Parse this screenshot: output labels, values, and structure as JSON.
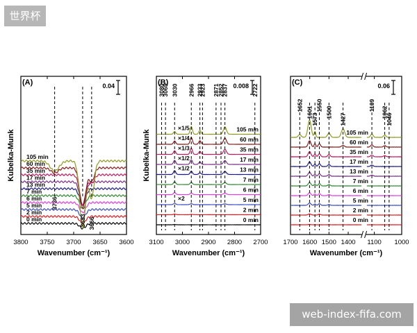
{
  "watermarks": {
    "top_left": "世界杯",
    "bottom_right": "web-index-fifa.com"
  },
  "chart_data": [
    {
      "panel": "(A)",
      "type": "line",
      "xlabel": "Wavenumber (cm⁻¹)",
      "ylabel": "Kubelka-Munk",
      "xlim": [
        3800,
        3600
      ],
      "xticks": [
        3800,
        3750,
        3700,
        3650,
        3600
      ],
      "scale_bar": "0.04",
      "markers": [
        {
          "x": 3736,
          "label": "3736"
        },
        {
          "x": 3683,
          "label": "3683"
        },
        {
          "x": 3666,
          "label": "3666"
        }
      ],
      "series": [
        {
          "name": "0 min",
          "color": "#000000",
          "features": [
            {
              "x": 3683,
              "w": 8,
              "a": -0.003
            }
          ]
        },
        {
          "name": "2 min",
          "color": "#e41a1c",
          "features": [
            {
              "x": 3683,
              "w": 8,
              "a": -0.004
            }
          ]
        },
        {
          "name": "5 min",
          "color": "#3b4cc0",
          "features": [
            {
              "x": 3683,
              "w": 8,
              "a": -0.005
            }
          ]
        },
        {
          "name": "6 min",
          "color": "#e43ce4",
          "features": [
            {
              "x": 3683,
              "w": 8,
              "a": -0.006
            }
          ]
        },
        {
          "name": "7 min",
          "color": "#2e8b2e",
          "features": [
            {
              "x": 3683,
              "w": 8,
              "a": -0.008
            }
          ]
        },
        {
          "name": "13 min",
          "color": "#1a1a8c",
          "features": [
            {
              "x": 3683,
              "w": 8,
              "a": -0.01
            }
          ]
        },
        {
          "name": "17 min",
          "color": "#7b2d8b",
          "features": [
            {
              "x": 3683,
              "w": 8,
              "a": -0.014
            }
          ]
        },
        {
          "name": "35 min",
          "color": "#c2185b",
          "features": [
            {
              "x": 3683,
              "w": 8,
              "a": -0.018
            },
            {
              "x": 3666,
              "w": 7,
              "a": -0.005
            }
          ]
        },
        {
          "name": "60 min",
          "color": "#8b1a1a",
          "features": [
            {
              "x": 3736,
              "w": 10,
              "a": -0.003
            },
            {
              "x": 3683,
              "w": 8,
              "a": -0.024
            },
            {
              "x": 3666,
              "w": 7,
              "a": -0.008
            }
          ]
        },
        {
          "name": "105 min",
          "color": "#8e9a1f",
          "features": [
            {
              "x": 3736,
              "w": 12,
              "a": -0.006
            },
            {
              "x": 3683,
              "w": 8,
              "a": -0.04
            },
            {
              "x": 3666,
              "w": 7,
              "a": -0.022
            }
          ]
        }
      ]
    },
    {
      "panel": "(B)",
      "type": "line",
      "xlabel": "Wavenumber (cm⁻¹)",
      "ylabel": "Kubelka-Munk",
      "xlim": [
        3100,
        2700
      ],
      "xticks": [
        3100,
        3000,
        2900,
        2800,
        2700
      ],
      "scale_bar": "0.008",
      "markers": [
        {
          "x": 3080,
          "label": "3080"
        },
        {
          "x": 3065,
          "label": "3065"
        },
        {
          "x": 3030,
          "label": "3030"
        },
        {
          "x": 2966,
          "label": "2966"
        },
        {
          "x": 2933,
          "label": "2933"
        },
        {
          "x": 2923,
          "label": "2923"
        },
        {
          "x": 2871,
          "label": "2871"
        },
        {
          "x": 2852,
          "label": "2852"
        },
        {
          "x": 2837,
          "label": "2837"
        },
        {
          "x": 2722,
          "label": "2722"
        }
      ],
      "multipliers": [
        {
          "label": "×1/5",
          "series": "105 min"
        },
        {
          "label": "×1/4",
          "series": "60 min"
        },
        {
          "label": "×1/3",
          "series": "35 min"
        },
        {
          "label": "×1/2",
          "series": "17 min"
        },
        {
          "label": "×1/2",
          "series": "13 min"
        },
        {
          "label": "×2",
          "series": "5 min"
        }
      ],
      "series": [
        {
          "name": "0 min",
          "color": "#000000",
          "features": [
            {
              "x": 3030,
              "w": 6,
              "a": 0.0002
            }
          ]
        },
        {
          "name": "2 min",
          "color": "#e41a1c",
          "features": [
            {
              "x": 3030,
              "w": 6,
              "a": 0.0005
            },
            {
              "x": 2966,
              "w": 6,
              "a": 0.0003
            }
          ]
        },
        {
          "name": "5 min",
          "color": "#3b4cc0",
          "features": [
            {
              "x": 3030,
              "w": 6,
              "a": 0.001
            },
            {
              "x": 2966,
              "w": 6,
              "a": 0.0008
            },
            {
              "x": 2837,
              "w": 8,
              "a": 0.0006
            }
          ]
        },
        {
          "name": "6 min",
          "color": "#e43ce4",
          "features": [
            {
              "x": 3030,
              "w": 6,
              "a": 0.0015
            },
            {
              "x": 2966,
              "w": 6,
              "a": 0.0012
            },
            {
              "x": 2837,
              "w": 8,
              "a": 0.001
            }
          ]
        },
        {
          "name": "7 min",
          "color": "#2e8b2e",
          "features": [
            {
              "x": 3030,
              "w": 6,
              "a": 0.002
            },
            {
              "x": 2966,
              "w": 6,
              "a": 0.0016
            },
            {
              "x": 2837,
              "w": 8,
              "a": 0.0014
            }
          ]
        },
        {
          "name": "13 min",
          "color": "#1a1a8c",
          "features": [
            {
              "x": 3030,
              "w": 6,
              "a": 0.0028
            },
            {
              "x": 2966,
              "w": 6,
              "a": 0.0024
            },
            {
              "x": 2933,
              "w": 6,
              "a": 0.0012
            },
            {
              "x": 2837,
              "w": 8,
              "a": 0.0022
            }
          ]
        },
        {
          "name": "17 min",
          "color": "#7b2d8b",
          "features": [
            {
              "x": 3030,
              "w": 6,
              "a": 0.003
            },
            {
              "x": 2966,
              "w": 6,
              "a": 0.0034
            },
            {
              "x": 2933,
              "w": 6,
              "a": 0.0018
            },
            {
              "x": 2837,
              "w": 8,
              "a": 0.0028
            }
          ]
        },
        {
          "name": "35 min",
          "color": "#c2185b",
          "features": [
            {
              "x": 3030,
              "w": 6,
              "a": 0.0026
            },
            {
              "x": 2966,
              "w": 6,
              "a": 0.0044
            },
            {
              "x": 2933,
              "w": 6,
              "a": 0.0022
            },
            {
              "x": 2837,
              "w": 8,
              "a": 0.0036
            }
          ]
        },
        {
          "name": "60 min",
          "color": "#8b1a1a",
          "features": [
            {
              "x": 3030,
              "w": 6,
              "a": 0.0024
            },
            {
              "x": 2966,
              "w": 6,
              "a": 0.005
            },
            {
              "x": 2933,
              "w": 6,
              "a": 0.0026
            },
            {
              "x": 2837,
              "w": 8,
              "a": 0.0044
            }
          ]
        },
        {
          "name": "105 min",
          "color": "#8e9a1f",
          "features": [
            {
              "x": 3030,
              "w": 6,
              "a": 0.002
            },
            {
              "x": 2966,
              "w": 6,
              "a": 0.0056
            },
            {
              "x": 2933,
              "w": 6,
              "a": 0.0028
            },
            {
              "x": 2837,
              "w": 8,
              "a": 0.0054
            }
          ]
        }
      ]
    },
    {
      "panel": "(C)",
      "type": "line",
      "xlabel": "Wavenumber (cm⁻¹)",
      "xlim": [
        1700,
        1000
      ],
      "axis_break": [
        1330,
        1130
      ],
      "xticks": [
        1700,
        1600,
        1500,
        1400,
        1100,
        1000
      ],
      "scale_bar": "0.06",
      "markers": [
        {
          "x": 1652,
          "label": "1652"
        },
        {
          "x": 1601,
          "label": "1601"
        },
        {
          "x": 1573,
          "label": "1573"
        },
        {
          "x": 1550,
          "label": "1550"
        },
        {
          "x": 1500,
          "label": "1500"
        },
        {
          "x": 1427,
          "label": "1427"
        },
        {
          "x": 1109,
          "label": "1109"
        },
        {
          "x": 1062,
          "label": "1062"
        },
        {
          "x": 1046,
          "label": "1046"
        }
      ],
      "series": [
        {
          "name": "0 min",
          "color": "#e41a1c",
          "features": [
            {
              "x": 1601,
              "w": 10,
              "a": 0.001
            }
          ]
        },
        {
          "name": "2 min",
          "color": "#e41a1c",
          "features": [
            {
              "x": 1601,
              "w": 10,
              "a": 0.004
            },
            {
              "x": 1550,
              "w": 8,
              "a": 0.003
            }
          ]
        },
        {
          "name": "5 min",
          "color": "#3b4cc0",
          "features": [
            {
              "x": 1601,
              "w": 10,
              "a": 0.008
            },
            {
              "x": 1573,
              "w": 6,
              "a": 0.005
            },
            {
              "x": 1550,
              "w": 8,
              "a": 0.006
            },
            {
              "x": 1500,
              "w": 8,
              "a": 0.003
            }
          ]
        },
        {
          "name": "6 min",
          "color": "#e43ce4",
          "features": [
            {
              "x": 1601,
              "w": 10,
              "a": 0.01
            },
            {
              "x": 1573,
              "w": 6,
              "a": 0.006
            },
            {
              "x": 1550,
              "w": 8,
              "a": 0.007
            },
            {
              "x": 1500,
              "w": 8,
              "a": 0.004
            }
          ]
        },
        {
          "name": "7 min",
          "color": "#2e8b2e",
          "features": [
            {
              "x": 1601,
              "w": 10,
              "a": 0.012
            },
            {
              "x": 1573,
              "w": 6,
              "a": 0.007
            },
            {
              "x": 1550,
              "w": 8,
              "a": 0.008
            },
            {
              "x": 1500,
              "w": 8,
              "a": 0.005
            }
          ]
        },
        {
          "name": "13 min",
          "color": "#7b2d8b",
          "features": [
            {
              "x": 1601,
              "w": 10,
              "a": 0.014
            },
            {
              "x": 1573,
              "w": 6,
              "a": 0.008
            },
            {
              "x": 1550,
              "w": 8,
              "a": 0.009
            },
            {
              "x": 1500,
              "w": 8,
              "a": 0.006
            },
            {
              "x": 1109,
              "w": 6,
              "a": 0.004
            }
          ]
        },
        {
          "name": "17 min",
          "color": "#1a1a8c",
          "features": [
            {
              "x": 1601,
              "w": 10,
              "a": 0.016
            },
            {
              "x": 1573,
              "w": 6,
              "a": 0.009
            },
            {
              "x": 1550,
              "w": 8,
              "a": 0.01
            },
            {
              "x": 1500,
              "w": 8,
              "a": 0.007
            },
            {
              "x": 1109,
              "w": 6,
              "a": 0.005
            }
          ]
        },
        {
          "name": "35 min",
          "color": "#c2185b",
          "features": [
            {
              "x": 1601,
              "w": 10,
              "a": 0.018
            },
            {
              "x": 1573,
              "w": 6,
              "a": 0.01
            },
            {
              "x": 1550,
              "w": 8,
              "a": 0.011
            },
            {
              "x": 1500,
              "w": 8,
              "a": 0.008
            },
            {
              "x": 1109,
              "w": 6,
              "a": 0.006
            },
            {
              "x": 1062,
              "w": 6,
              "a": 0.004
            }
          ]
        },
        {
          "name": "60 min",
          "color": "#8b1a1a",
          "features": [
            {
              "x": 1601,
              "w": 10,
              "a": 0.022
            },
            {
              "x": 1573,
              "w": 6,
              "a": 0.012
            },
            {
              "x": 1550,
              "w": 8,
              "a": 0.012
            },
            {
              "x": 1427,
              "w": 10,
              "a": 0.006
            },
            {
              "x": 1109,
              "w": 6,
              "a": 0.008
            },
            {
              "x": 1062,
              "w": 6,
              "a": 0.005
            }
          ]
        },
        {
          "name": "105 min",
          "color": "#8e9a1f",
          "features": [
            {
              "x": 1652,
              "w": 10,
              "a": 0.01
            },
            {
              "x": 1601,
              "w": 12,
              "a": 0.06
            },
            {
              "x": 1573,
              "w": 6,
              "a": 0.02
            },
            {
              "x": 1500,
              "w": 10,
              "a": 0.015
            },
            {
              "x": 1427,
              "w": 12,
              "a": 0.03
            },
            {
              "x": 1109,
              "w": 6,
              "a": 0.012
            },
            {
              "x": 1062,
              "w": 6,
              "a": 0.008
            }
          ]
        }
      ]
    }
  ]
}
